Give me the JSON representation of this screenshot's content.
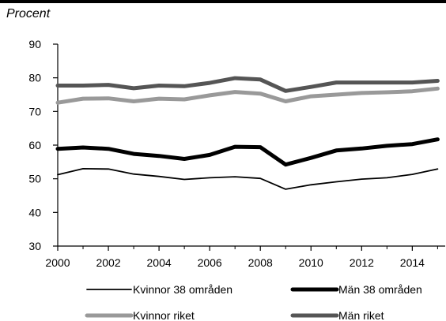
{
  "unit_label": "Procent",
  "chart_data": {
    "type": "line",
    "title": "",
    "xlabel": "",
    "ylabel": "Procent",
    "x": [
      2000,
      2001,
      2002,
      2003,
      2004,
      2005,
      2006,
      2007,
      2008,
      2009,
      2010,
      2011,
      2012,
      2013,
      2014,
      2015
    ],
    "xlim": [
      2000,
      2015.3
    ],
    "ylim": [
      30,
      90
    ],
    "xticks": [
      2000,
      2002,
      2004,
      2006,
      2008,
      2010,
      2012,
      2014
    ],
    "xtick_labels": [
      "2000",
      "2002",
      "2004",
      "2006",
      "2008",
      "2010",
      "2012",
      "2014"
    ],
    "yticks": [
      30,
      40,
      50,
      60,
      70,
      80,
      90
    ],
    "ytick_labels": [
      "30",
      "40",
      "50",
      "60",
      "70",
      "80",
      "90"
    ],
    "grid": false,
    "legend_position": "bottom",
    "series": [
      {
        "name": "Kvinnor 38 områden",
        "color": "#000000",
        "style": "thin",
        "values": [
          51.2,
          53.0,
          52.9,
          51.4,
          50.7,
          49.8,
          50.3,
          50.6,
          50.1,
          46.9,
          48.2,
          49.1,
          49.9,
          50.3,
          51.3,
          52.9
        ]
      },
      {
        "name": "Män 38 områden",
        "color": "#000000",
        "style": "thick",
        "values": [
          58.9,
          59.3,
          58.9,
          57.4,
          56.8,
          55.9,
          57.1,
          59.5,
          59.4,
          54.2,
          56.2,
          58.4,
          59.0,
          59.8,
          60.3,
          61.7
        ]
      },
      {
        "name": "Kvinnor riket",
        "color": "#999999",
        "style": "thick",
        "values": [
          72.6,
          73.8,
          73.9,
          73.0,
          73.8,
          73.6,
          74.8,
          75.8,
          75.3,
          73.0,
          74.5,
          75.0,
          75.5,
          75.7,
          76.0,
          76.8
        ]
      },
      {
        "name": "Män riket",
        "color": "#555555",
        "style": "thick",
        "values": [
          77.7,
          77.7,
          77.9,
          76.9,
          77.7,
          77.5,
          78.5,
          79.9,
          79.5,
          76.1,
          77.3,
          78.6,
          78.6,
          78.6,
          78.6,
          79.1
        ]
      }
    ]
  }
}
